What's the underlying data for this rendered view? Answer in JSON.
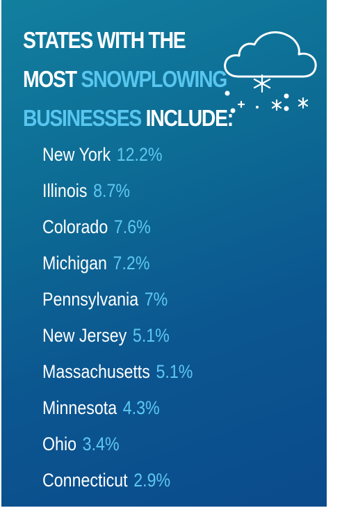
{
  "headline": {
    "line1": {
      "a": "STATES",
      "b": " WITH THE"
    },
    "line2": {
      "a": "MOST ",
      "b": "SNOWPLOWING"
    },
    "line3": {
      "a": "BUSINESSES",
      "b": " INCLUDE:"
    }
  },
  "icon": "snow-cloud-icon",
  "colors": {
    "background_top": "#127f9f",
    "background_bottom": "#0b4b8c",
    "accent": "#5ec8f1",
    "text": "#ffffff"
  },
  "states": [
    {
      "name": "New York",
      "pct": "12.2%"
    },
    {
      "name": "Illinois",
      "pct": "8.7%"
    },
    {
      "name": "Colorado",
      "pct": "7.6%"
    },
    {
      "name": "Michigan",
      "pct": "7.2%"
    },
    {
      "name": "Pennsylvania",
      "pct": "7%"
    },
    {
      "name": "New Jersey",
      "pct": "5.1%"
    },
    {
      "name": "Massachusetts",
      "pct": "5.1%"
    },
    {
      "name": "Minnesota",
      "pct": "4.3%"
    },
    {
      "name": "Ohio",
      "pct": "3.4%"
    },
    {
      "name": "Connecticut",
      "pct": "2.9%"
    }
  ]
}
